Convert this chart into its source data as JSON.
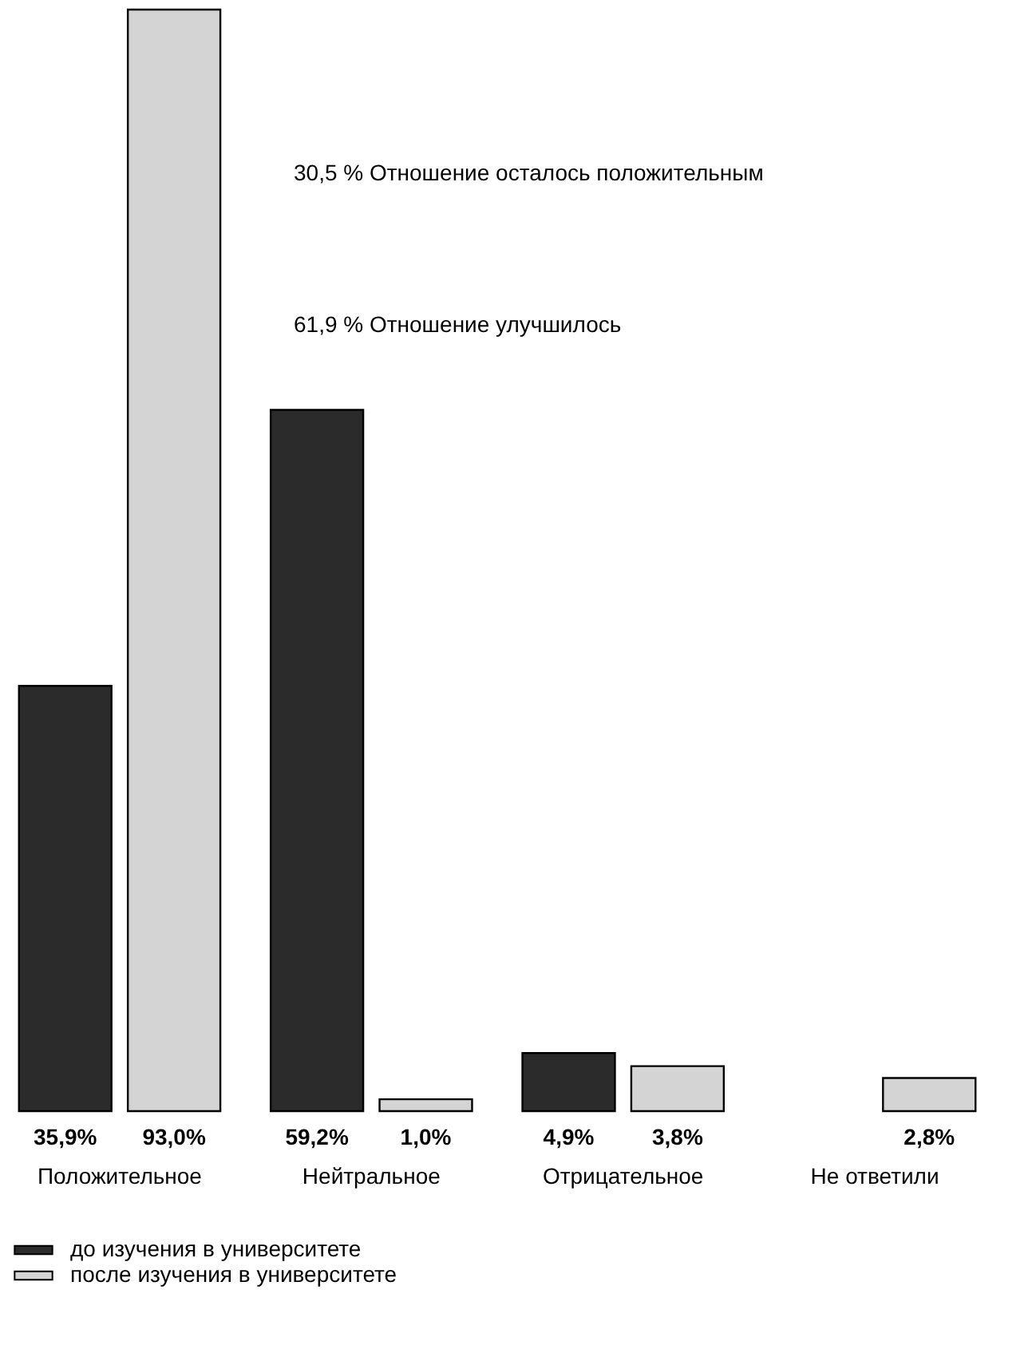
{
  "chart_data": {
    "type": "bar",
    "categories": [
      "Положительное",
      "Нейтральное",
      "Отрицательное",
      "Не ответили"
    ],
    "series": [
      {
        "name": "до изучения в университете",
        "color": "#2b2b2b",
        "values": [
          35.9,
          59.2,
          4.9,
          null
        ],
        "value_labels": [
          "35,9%",
          "59,2%",
          "4,9%",
          null
        ]
      },
      {
        "name": "после изучения в университете",
        "color": "#d4d4d4",
        "values": [
          93.0,
          1.0,
          3.8,
          2.8
        ],
        "value_labels": [
          "93,0%",
          "1,0%",
          "3,8%",
          "2,8%"
        ]
      }
    ],
    "annotations": [
      "30,5 % Отношение осталось положительным",
      "61,9 % Отношение улучшилось"
    ],
    "legend": "bottom left",
    "grid": false
  }
}
